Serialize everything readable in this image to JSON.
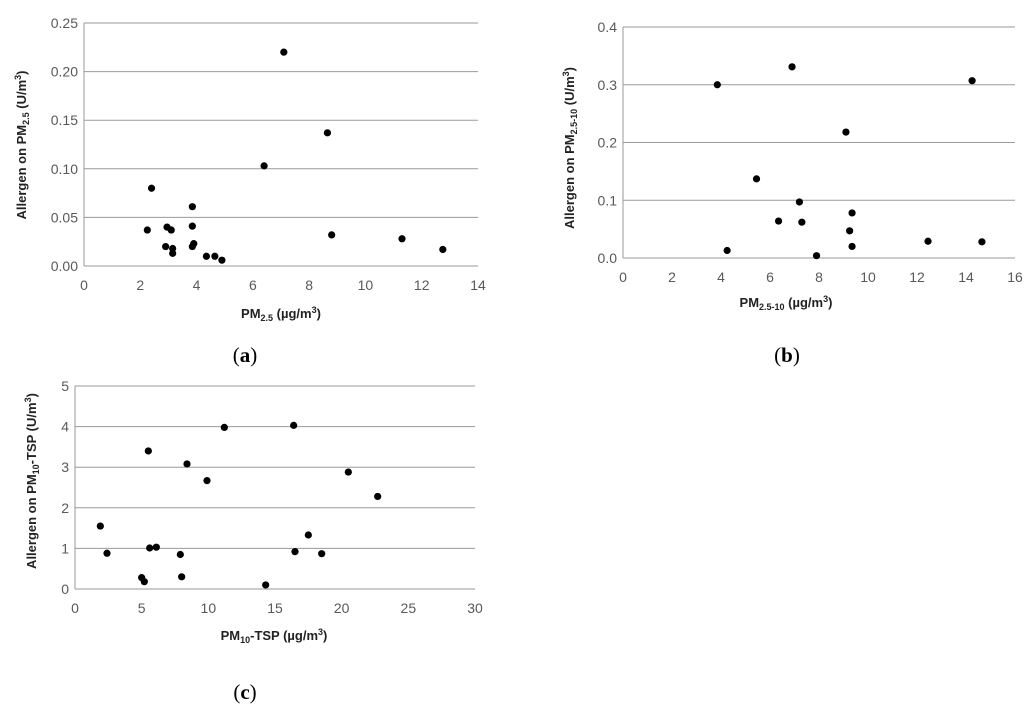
{
  "chart_data": [
    {
      "type": "scatter",
      "panel_label": "a",
      "xlabel": {
        "pre": "PM",
        "sub": "2.5",
        "post": " (µg/m",
        "sup": "3",
        "end": ")"
      },
      "ylabel": {
        "pre": "Allergen on PM",
        "sub": "2.5",
        "post": " (U/m",
        "sup": "3",
        "end": ")"
      },
      "xlim": [
        0,
        14
      ],
      "ylim": [
        0,
        0.25
      ],
      "x_ticks": [
        "0",
        "2",
        "4",
        "6",
        "8",
        "10",
        "12",
        "14"
      ],
      "y_ticks": [
        "0.00",
        "0.05",
        "0.10",
        "0.15",
        "0.20",
        "0.25"
      ],
      "grid": "horizontal",
      "points": [
        {
          "x": 2.25,
          "y": 0.037
        },
        {
          "x": 2.4,
          "y": 0.08
        },
        {
          "x": 2.9,
          "y": 0.02
        },
        {
          "x": 2.95,
          "y": 0.04
        },
        {
          "x": 3.1,
          "y": 0.037
        },
        {
          "x": 3.15,
          "y": 0.018
        },
        {
          "x": 3.15,
          "y": 0.013
        },
        {
          "x": 3.85,
          "y": 0.061
        },
        {
          "x": 3.85,
          "y": 0.041
        },
        {
          "x": 3.85,
          "y": 0.02
        },
        {
          "x": 3.9,
          "y": 0.023
        },
        {
          "x": 4.35,
          "y": 0.01
        },
        {
          "x": 4.65,
          "y": 0.01
        },
        {
          "x": 4.9,
          "y": 0.006
        },
        {
          "x": 6.4,
          "y": 0.103
        },
        {
          "x": 7.1,
          "y": 0.22
        },
        {
          "x": 8.65,
          "y": 0.137
        },
        {
          "x": 8.8,
          "y": 0.032
        },
        {
          "x": 11.3,
          "y": 0.028
        },
        {
          "x": 12.75,
          "y": 0.017
        }
      ]
    },
    {
      "type": "scatter",
      "panel_label": "b",
      "xlabel": {
        "pre": "PM",
        "sub": "2.5-10",
        "post": " (µg/m",
        "sup": "3",
        "end": ")"
      },
      "ylabel": {
        "pre": "Allergen on PM",
        "sub": "2.5-10",
        "post": " (U/m",
        "sup": "3",
        "end": ")"
      },
      "xlim": [
        0,
        16
      ],
      "ylim": [
        0,
        0.4
      ],
      "x_ticks": [
        "0",
        "2",
        "4",
        "6",
        "8",
        "10",
        "12",
        "14",
        "16"
      ],
      "y_ticks": [
        "0.0",
        "0.1",
        "0.2",
        "0.3",
        "0.4"
      ],
      "grid": "horizontal",
      "points": [
        {
          "x": 3.85,
          "y": 0.3
        },
        {
          "x": 4.25,
          "y": 0.013
        },
        {
          "x": 5.45,
          "y": 0.137
        },
        {
          "x": 6.35,
          "y": 0.064
        },
        {
          "x": 6.9,
          "y": 0.331
        },
        {
          "x": 7.2,
          "y": 0.097
        },
        {
          "x": 7.3,
          "y": 0.062
        },
        {
          "x": 7.9,
          "y": 0.004
        },
        {
          "x": 9.1,
          "y": 0.218
        },
        {
          "x": 9.25,
          "y": 0.047
        },
        {
          "x": 9.35,
          "y": 0.078
        },
        {
          "x": 9.35,
          "y": 0.02
        },
        {
          "x": 12.45,
          "y": 0.029
        },
        {
          "x": 14.25,
          "y": 0.307
        },
        {
          "x": 14.65,
          "y": 0.028
        }
      ]
    },
    {
      "type": "scatter",
      "panel_label": "c",
      "xlabel": {
        "pre": "PM",
        "sub": "10",
        "post": "-TSP  (µg/m",
        "sup": "3",
        "end": ")"
      },
      "ylabel": {
        "pre": "Allergen on PM",
        "sub": "10",
        "post": "-TSP  (U/m",
        "sup": "3",
        "end": ")"
      },
      "xlim": [
        0,
        30
      ],
      "ylim": [
        0,
        5
      ],
      "x_ticks": [
        "0",
        "5",
        "10",
        "15",
        "20",
        "25",
        "30"
      ],
      "y_ticks": [
        "0",
        "1",
        "2",
        "3",
        "4",
        "5"
      ],
      "grid": "horizontal",
      "points": [
        {
          "x": 1.9,
          "y": 1.55
        },
        {
          "x": 2.4,
          "y": 0.88
        },
        {
          "x": 5.0,
          "y": 0.28
        },
        {
          "x": 5.2,
          "y": 0.18
        },
        {
          "x": 5.5,
          "y": 3.4
        },
        {
          "x": 5.6,
          "y": 1.01
        },
        {
          "x": 6.1,
          "y": 1.03
        },
        {
          "x": 7.9,
          "y": 0.85
        },
        {
          "x": 8.0,
          "y": 0.3
        },
        {
          "x": 8.4,
          "y": 3.08
        },
        {
          "x": 9.9,
          "y": 2.67
        },
        {
          "x": 11.2,
          "y": 3.98
        },
        {
          "x": 14.3,
          "y": 0.1
        },
        {
          "x": 16.4,
          "y": 4.03
        },
        {
          "x": 16.5,
          "y": 0.92
        },
        {
          "x": 17.5,
          "y": 1.33
        },
        {
          "x": 18.5,
          "y": 0.87
        },
        {
          "x": 20.5,
          "y": 2.88
        },
        {
          "x": 22.7,
          "y": 2.28
        }
      ]
    }
  ]
}
